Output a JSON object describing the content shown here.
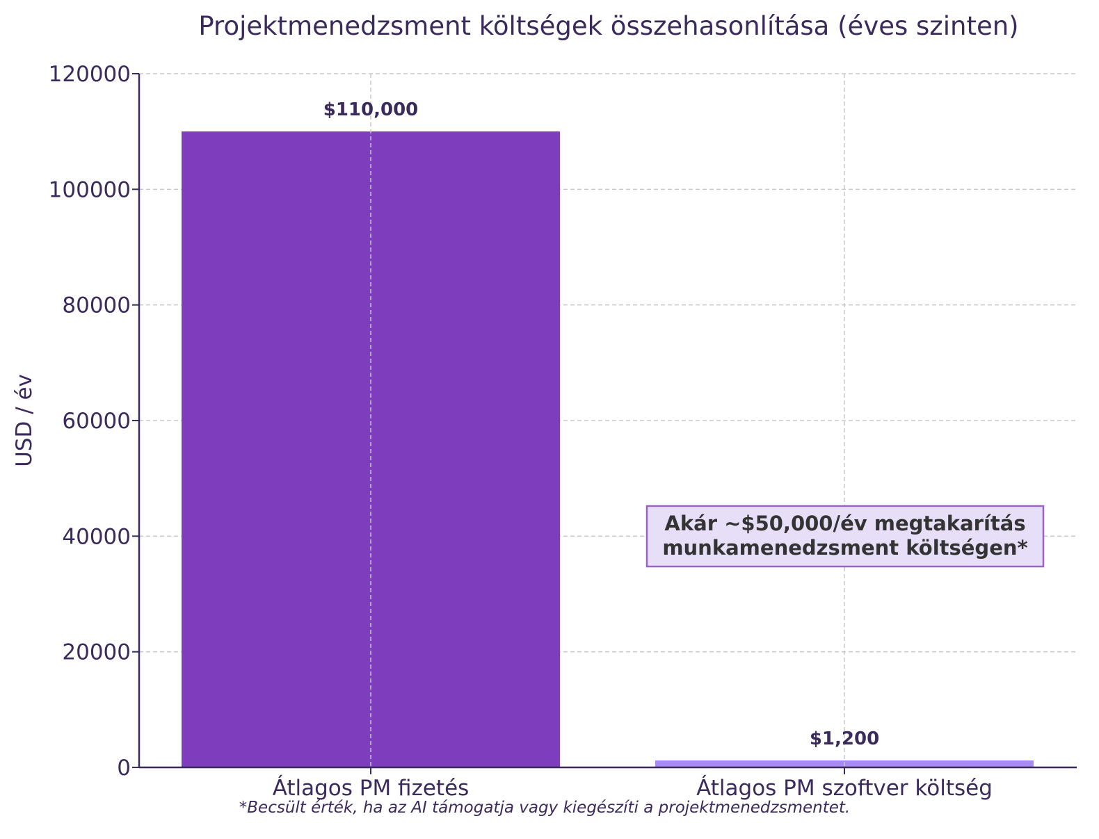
{
  "chart_data": {
    "type": "bar",
    "title": "Projektmenedzsment költségek összehasonlítása (éves szinten)",
    "xlabel": "",
    "ylabel": "USD / év",
    "categories": [
      "Átlagos PM fizetés",
      "Átlagos PM szoftver költség"
    ],
    "values": [
      110000,
      1200
    ],
    "value_labels": [
      "$110,000",
      "$1,200"
    ],
    "bar_colors": [
      "#7e3dbc",
      "#a98af5"
    ],
    "ylim": [
      0,
      120000
    ],
    "yticks": [
      0,
      20000,
      40000,
      60000,
      80000,
      100000,
      120000
    ],
    "ytick_labels": [
      "0",
      "20000",
      "40000",
      "60000",
      "80000",
      "100000",
      "120000"
    ],
    "grid": true,
    "annotation": {
      "lines": [
        "Akár ~$50,000/év megtakarítás",
        "munkamenedzsment költségen*"
      ]
    },
    "footnote": "*Becsült érték, ha az AI támogatja vagy kiegészíti a projektmenedzsmentet."
  },
  "colors": {
    "text": "#3b2a5c",
    "axis": "#3b2a5c",
    "grid": "#c8c8c8",
    "annotation_bg": "#e7dff7",
    "annotation_border": "#9a63c9",
    "annotation_text": "#333333"
  }
}
